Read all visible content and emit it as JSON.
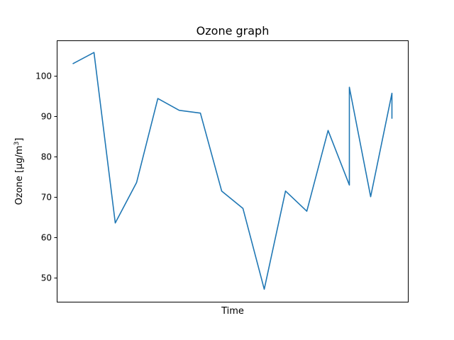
{
  "chart_data": {
    "type": "line",
    "title": "Ozone graph",
    "xlabel": "Time",
    "ylabel": "Ozone [µg/m³]",
    "ylabel_parts": {
      "main": "Ozone [µg/m",
      "sup": "3",
      "end": "]"
    },
    "y_ticks": [
      50,
      60,
      70,
      80,
      90,
      100
    ],
    "ylim": [
      44.1,
      108.8
    ],
    "xlim": [
      -0.75,
      15.75
    ],
    "x_ticks_shown": false,
    "grid": false,
    "legend": "none",
    "series": [
      {
        "color": "#1f77b4",
        "x": [
          0,
          1,
          2,
          3,
          4,
          5,
          6,
          7,
          8,
          9,
          10,
          11,
          12,
          13,
          13,
          14,
          15,
          15
        ],
        "y": [
          103,
          105.8,
          63.6,
          73.6,
          94.4,
          91.5,
          90.8,
          71.5,
          67.2,
          47.2,
          71.5,
          66.5,
          86.5,
          73.0,
          97.2,
          70.1,
          95.7,
          89.4
        ]
      }
    ]
  }
}
